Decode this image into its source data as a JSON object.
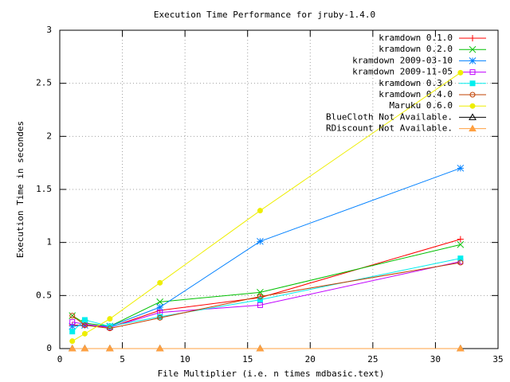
{
  "chart_data": {
    "type": "line",
    "title": "Execution Time Performance for jruby-1.4.0",
    "xlabel": "File Multiplier (i.e. n times mdbasic.text)",
    "ylabel": "Execution Time in secondes",
    "x": [
      1,
      2,
      4,
      8,
      16,
      32
    ],
    "xlim": [
      0,
      35
    ],
    "xticks": [
      0,
      5,
      10,
      15,
      20,
      25,
      30,
      35
    ],
    "ylim": [
      0,
      3
    ],
    "yticks": [
      0,
      0.5,
      1,
      1.5,
      2,
      2.5,
      3
    ],
    "grid": true,
    "legend": "top-right",
    "series": [
      {
        "name": "kramdown 0.1.0",
        "color": "#ff0000",
        "marker": "plus",
        "values": [
          0.22,
          0.22,
          0.2,
          0.36,
          0.48,
          1.03
        ]
      },
      {
        "name": "kramdown 0.2.0",
        "color": "#00c000",
        "marker": "cross",
        "values": [
          0.31,
          0.24,
          0.21,
          0.44,
          0.53,
          0.98
        ]
      },
      {
        "name": "kramdown 2009-03-10",
        "color": "#0080ff",
        "marker": "star",
        "values": [
          0.21,
          0.22,
          0.21,
          0.39,
          1.01,
          1.7
        ]
      },
      {
        "name": "kramdown 2009-11-05",
        "color": "#c000ff",
        "marker": "box",
        "values": [
          0.25,
          0.23,
          0.2,
          0.34,
          0.41,
          0.82
        ]
      },
      {
        "name": "kramdown 0.3.0",
        "color": "#00eeee",
        "marker": "filled-box",
        "values": [
          0.16,
          0.27,
          0.21,
          0.3,
          0.46,
          0.85
        ]
      },
      {
        "name": "kramdown 0.4.0",
        "color": "#c04000",
        "marker": "circle",
        "values": [
          0.31,
          0.22,
          0.19,
          0.29,
          0.49,
          0.81
        ]
      },
      {
        "name": "Maruku 0.6.0",
        "color": "#eeee00",
        "marker": "filled-circle",
        "values": [
          0.07,
          0.14,
          0.28,
          0.62,
          1.3,
          2.6
        ]
      },
      {
        "name": "BlueCloth Not Available.",
        "color": "#000000",
        "marker": "triangle",
        "values": [
          0,
          0,
          0,
          0,
          0,
          0
        ]
      },
      {
        "name": "RDiscount Not Available.",
        "color": "#ffa040",
        "marker": "filled-triangle",
        "values": [
          0,
          0,
          0,
          0,
          0,
          0
        ]
      }
    ]
  }
}
